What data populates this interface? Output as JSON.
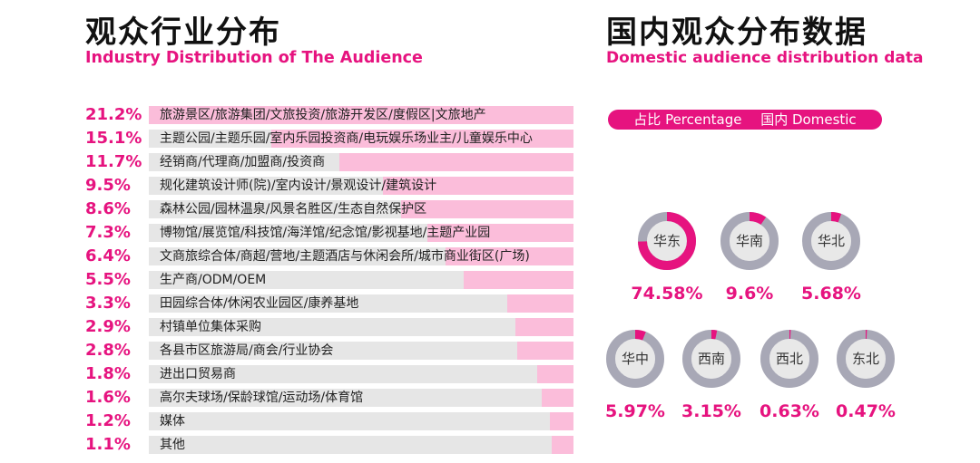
{
  "colors": {
    "accent": "#e6137f",
    "bar_fill": "#fbbdda",
    "bar_track": "#e6e6e6",
    "ring_track": "#a8a8b6",
    "ring_center": "#e8e8e8"
  },
  "left_panel": {
    "title": "观众行业分布",
    "subtitle": "Industry Distribution of The Audience"
  },
  "right_panel": {
    "title": "国内观众分布数据",
    "subtitle": "Domestic audience distribution data",
    "legend": {
      "percentage": "占比 Percentage",
      "domestic": "国内 Domestic"
    }
  },
  "chart_data": [
    {
      "type": "bar",
      "orientation": "horizontal",
      "title": "观众行业分布",
      "subtitle": "Industry Distribution of The Audience",
      "categories": [
        "旅游景区/旅游集团/文旅投资/旅游开发区/度假区|文旅地产",
        "主题公园/主题乐园/室内乐园投资商/电玩娱乐场业主/儿童娱乐中心",
        "经销商/代理商/加盟商/投资商",
        "规化建筑设计师(院)/室内设计/景观设计/建筑设计",
        "森林公园/园林温泉/风景名胜区/生态自然保护区",
        "博物馆/展览馆/科技馆/海洋馆/纪念馆/影视基地/主题产业园",
        "文商旅综合体/商超/营地/主题酒店与休闲会所/城市商业街区(广场)",
        "生产商/ODM/OEM",
        "田园综合体/休闲农业园区/康养基地",
        "村镇单位集体采购",
        "各县市区旅游局/商会/行业协会",
        "进出口贸易商",
        "高尔夫球场/保龄球馆/运动场/体育馆",
        "媒体",
        "其他"
      ],
      "values": [
        21.2,
        15.1,
        11.7,
        9.5,
        8.6,
        7.3,
        6.4,
        5.5,
        3.3,
        2.9,
        2.8,
        1.8,
        1.6,
        1.2,
        1.1
      ],
      "labels": [
        "21.2%",
        "15.1%",
        "11.7%",
        "9.5%",
        "8.6%",
        "7.3%",
        "6.4%",
        "5.5%",
        "3.3%",
        "2.9%",
        "2.8%",
        "1.8%",
        "1.6%",
        "1.2%",
        "1.1%"
      ],
      "xlim": [
        0,
        21.2
      ]
    },
    {
      "type": "pie",
      "style": "donut",
      "title": "国内观众分布数据",
      "subtitle": "Domestic audience distribution data",
      "categories": [
        "华东",
        "华南",
        "华北",
        "华中",
        "西南",
        "西北",
        "东北"
      ],
      "values": [
        74.58,
        9.6,
        5.68,
        5.97,
        3.15,
        0.63,
        0.47
      ],
      "labels": [
        "74.58%",
        "9.6%",
        "5.68%",
        "5.97%",
        "3.15%",
        "0.63%",
        "0.47%"
      ],
      "legend": [
        "占比 Percentage",
        "国内 Domestic"
      ]
    }
  ]
}
